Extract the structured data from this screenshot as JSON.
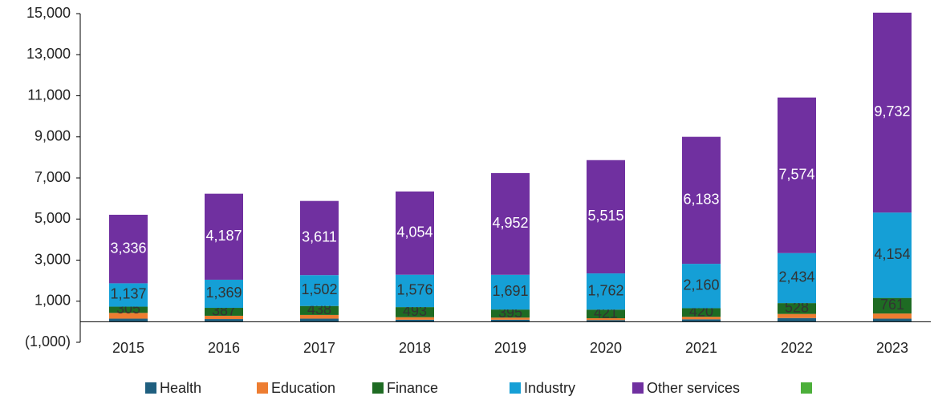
{
  "chart_data": {
    "type": "stacked_bar",
    "categories": [
      "2015",
      "2016",
      "2017",
      "2018",
      "2019",
      "2020",
      "2021",
      "2022",
      "2023"
    ],
    "series": [
      {
        "name": "Health",
        "color": "#1f5f7f",
        "values": [
          150,
          130,
          150,
          100,
          100,
          80,
          120,
          180,
          150
        ]
      },
      {
        "name": "Education",
        "color": "#ed7d31",
        "values": [
          280,
          160,
          180,
          120,
          100,
          90,
          120,
          200,
          250
        ]
      },
      {
        "name": "Finance",
        "color": "#1e6b23",
        "values": [
          305,
          387,
          438,
          493,
          395,
          421,
          420,
          528,
          761
        ],
        "value_labels": [
          "305",
          "387",
          "438",
          "493",
          "395",
          "421",
          "420",
          "528",
          "761"
        ]
      },
      {
        "name": "Industry",
        "color": "#159fd6",
        "values": [
          1137,
          1369,
          1502,
          1576,
          1691,
          1762,
          2160,
          2434,
          4154
        ],
        "value_labels": [
          "1,137",
          "1,369",
          "1,502",
          "1,576",
          "1,691",
          "1,762",
          "2,160",
          "2,434",
          "4,154"
        ]
      },
      {
        "name": "Other services",
        "color": "#7030a0",
        "values": [
          3336,
          4187,
          3611,
          4054,
          4952,
          5515,
          6183,
          7574,
          9732
        ],
        "value_labels": [
          "3,336",
          "4,187",
          "3,611",
          "4,054",
          "4,952",
          "5,515",
          "6,183",
          "7,574",
          "9,732"
        ]
      },
      {
        "name": null,
        "color": "#4caf3a",
        "values": [
          null,
          null,
          null,
          null,
          null,
          null,
          null,
          null,
          null
        ]
      }
    ],
    "ylim": [
      -1000,
      15000
    ],
    "yticks": [
      {
        "value": -1000,
        "label": "(1,000)"
      },
      {
        "value": 1000,
        "label": "1,000"
      },
      {
        "value": 3000,
        "label": "3,000"
      },
      {
        "value": 5000,
        "label": "5,000"
      },
      {
        "value": 7000,
        "label": "7,000"
      },
      {
        "value": 9000,
        "label": "9,000"
      },
      {
        "value": 11000,
        "label": "11,000"
      },
      {
        "value": 13000,
        "label": "13,000"
      },
      {
        "value": 15000,
        "label": "15,000"
      }
    ],
    "legend": "bottom"
  }
}
